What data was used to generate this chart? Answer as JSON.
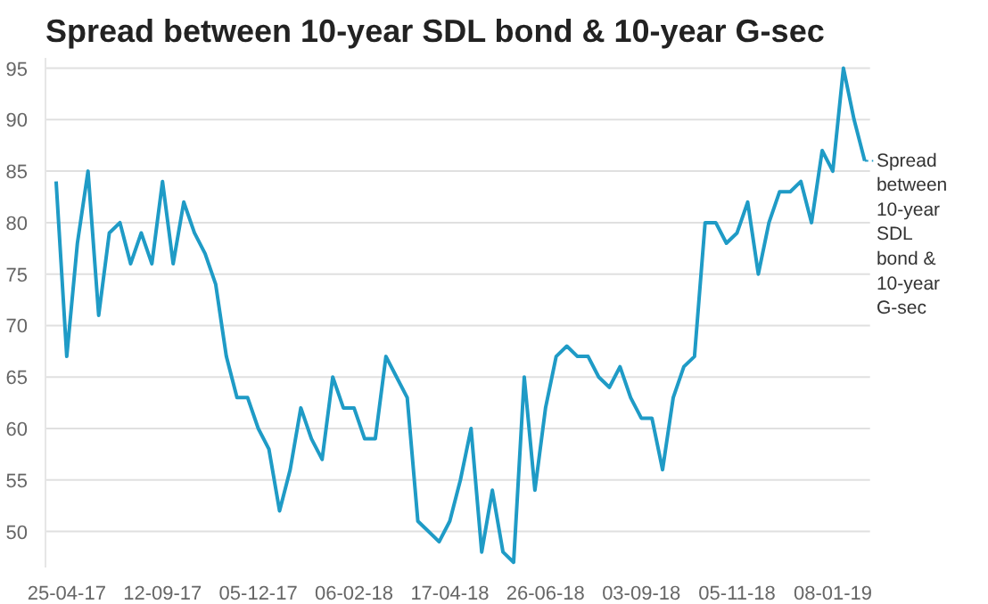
{
  "chart_data": {
    "type": "line",
    "title": "Spread between 10-year SDL bond & 10-year G-sec",
    "categories": [
      null,
      "25-04-17",
      null,
      null,
      null,
      null,
      null,
      null,
      null,
      null,
      "12-09-17",
      null,
      null,
      null,
      null,
      null,
      null,
      null,
      null,
      "05-12-17",
      null,
      null,
      null,
      null,
      null,
      null,
      null,
      null,
      "06-02-18",
      null,
      null,
      null,
      null,
      null,
      null,
      null,
      null,
      "17-04-18",
      null,
      null,
      null,
      null,
      null,
      null,
      null,
      null,
      "26-06-18",
      null,
      null,
      null,
      null,
      null,
      null,
      null,
      null,
      "03-09-18",
      null,
      null,
      null,
      null,
      null,
      null,
      null,
      null,
      "05-11-18",
      null,
      null,
      null,
      null,
      null,
      null,
      null,
      null,
      "08-01-19",
      null,
      null,
      null
    ],
    "series": [
      {
        "name": "Spread between 10-year SDL bond & 10-year G-sec",
        "color": "#1f9bc6",
        "values": [
          84,
          67,
          78,
          85,
          71,
          79,
          80,
          76,
          79,
          76,
          84,
          76,
          82,
          79,
          77,
          74,
          67,
          63,
          63,
          60,
          58,
          52,
          56,
          62,
          59,
          57,
          65,
          62,
          62,
          59,
          59,
          67,
          65,
          63,
          51,
          50,
          49,
          51,
          55,
          60,
          48,
          54,
          48,
          47,
          65,
          54,
          62,
          67,
          68,
          67,
          67,
          65,
          64,
          66,
          63,
          61,
          61,
          56,
          63,
          66,
          67,
          80,
          80,
          78,
          79,
          82,
          75,
          80,
          83,
          83,
          84,
          80,
          87,
          85,
          95,
          90,
          86
        ]
      }
    ],
    "ylim": [
      46.5,
      96
    ],
    "yticks": [
      50,
      55,
      60,
      65,
      70,
      75,
      80,
      85,
      90,
      95
    ],
    "grid": "y",
    "legend": "right",
    "marker": "none",
    "line_style": "solid"
  }
}
